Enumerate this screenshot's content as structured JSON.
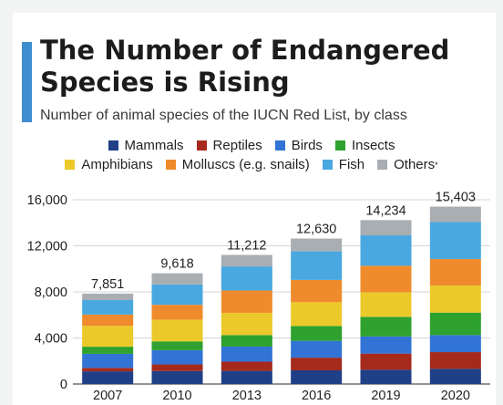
{
  "header": {
    "title": "The Number of Endangered Species is Rising",
    "subtitle": "Number of animal species of the IUCN Red List, by class"
  },
  "legend": {
    "row1": [
      {
        "label": "Mammals",
        "color": "#1f3f87"
      },
      {
        "label": "Reptiles",
        "color": "#a52a1c"
      },
      {
        "label": "Birds",
        "color": "#3273d6"
      },
      {
        "label": "Insects",
        "color": "#2ea12e"
      }
    ],
    "row2": [
      {
        "label": "Amphibians",
        "color": "#ecc92a"
      },
      {
        "label": "Molluscs (e.g. snails)",
        "color": "#ef8b2c"
      },
      {
        "label": "Fish",
        "color": "#4aa8e0"
      },
      {
        "label": "Others",
        "color": "#a9aeb3",
        "footnote_mark": "*"
      }
    ]
  },
  "chart_data": {
    "type": "bar",
    "stacked": true,
    "categories": [
      "2007",
      "2010",
      "2013",
      "2016",
      "2019",
      "2020"
    ],
    "series": [
      {
        "name": "Mammals",
        "color": "#1f3f87",
        "values": [
          1100,
          1130,
          1140,
          1190,
          1240,
          1320
        ]
      },
      {
        "name": "Reptiles",
        "color": "#a52a1c",
        "values": [
          300,
          570,
          800,
          1100,
          1400,
          1450
        ]
      },
      {
        "name": "Birds",
        "color": "#3273d6",
        "values": [
          1220,
          1240,
          1310,
          1460,
          1490,
          1480
        ]
      },
      {
        "name": "Insects",
        "color": "#2ea12e",
        "values": [
          620,
          760,
          1000,
          1290,
          1700,
          1950
        ]
      },
      {
        "name": "Amphibians",
        "color": "#ecc92a",
        "values": [
          1810,
          1890,
          1930,
          2060,
          2140,
          2350
        ]
      },
      {
        "name": "Molluscs (e.g. snails)",
        "color": "#ef8b2c",
        "values": [
          980,
          1290,
          1940,
          1940,
          2300,
          2300
        ]
      },
      {
        "name": "Fish",
        "color": "#4aa8e0",
        "values": [
          1260,
          1760,
          2090,
          2480,
          2640,
          3210
        ]
      },
      {
        "name": "Others",
        "color": "#a9aeb3",
        "values": [
          561,
          978,
          1002,
          1110,
          1324,
          1343
        ]
      }
    ],
    "totals": [
      "7,851",
      "9,618",
      "11,212",
      "12,630",
      "14,234",
      "15,403"
    ],
    "yticks": [
      "0",
      "4,000",
      "8,000",
      "12,000",
      "16,000"
    ],
    "ylim": [
      0,
      16000
    ],
    "grid": true,
    "legend_position": "top"
  }
}
